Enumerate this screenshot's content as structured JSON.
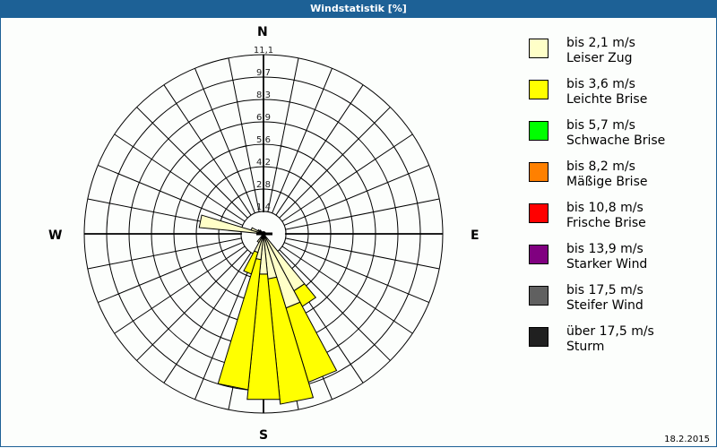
{
  "title": "Windstatistik [%]",
  "footer_date": "18.2.2015",
  "compass": {
    "n": "N",
    "e": "E",
    "s": "S",
    "w": "W"
  },
  "legend": [
    {
      "speed": "bis 2,1 m/s",
      "name": "Leiser Zug",
      "color": "#ffffc8"
    },
    {
      "speed": "bis 3,6 m/s",
      "name": "Leichte Brise",
      "color": "#ffff00"
    },
    {
      "speed": "bis 5,7 m/s",
      "name": "Schwache Brise",
      "color": "#00ff00"
    },
    {
      "speed": "bis 8,2 m/s",
      "name": "Mäßige Brise",
      "color": "#ff8000"
    },
    {
      "speed": "bis 10,8 m/s",
      "name": "Frische Brise",
      "color": "#ff0000"
    },
    {
      "speed": "bis 13,9 m/s",
      "name": "Starker Wind",
      "color": "#800080"
    },
    {
      "speed": "bis 17,5 m/s",
      "name": "Steifer Wind",
      "color": "#606060"
    },
    {
      "speed": "über 17,5 m/s",
      "name": "Sturm",
      "color": "#202020"
    }
  ],
  "chart_data": {
    "type": "wind-rose",
    "title": "Windstatistik [%]",
    "ring_labels": [
      "1,4",
      "2,8",
      "4,2",
      "5,6",
      "6,9",
      "8,3",
      "9,7",
      "11,1"
    ],
    "rmax": 11.1,
    "sectors": 32,
    "series_names": [
      "Leiser Zug",
      "Leichte Brise"
    ],
    "petals": [
      {
        "dir_deg": 146.25,
        "leiser_zug": 4.0,
        "leichte_brise": 1.1
      },
      {
        "dir_deg": 157.5,
        "leiser_zug": 4.8,
        "leichte_brise": 4.8
      },
      {
        "dir_deg": 168.75,
        "leiser_zug": 2.8,
        "leichte_brise": 7.8
      },
      {
        "dir_deg": 180.0,
        "leiser_zug": 2.5,
        "leichte_brise": 7.8
      },
      {
        "dir_deg": 191.25,
        "leiser_zug": 1.6,
        "leichte_brise": 8.1
      },
      {
        "dir_deg": 202.5,
        "leiser_zug": 1.2,
        "leichte_brise": 1.4
      },
      {
        "dir_deg": 213.75,
        "leiser_zug": 0.6,
        "leichte_brise": 0.0
      },
      {
        "dir_deg": 281.25,
        "leiser_zug": 4.0,
        "leichte_brise": 0.0
      },
      {
        "dir_deg": 292.5,
        "leiser_zug": 0.8,
        "leichte_brise": 0.0
      },
      {
        "dir_deg": 303.75,
        "leiser_zug": 0.4,
        "leichte_brise": 0.0
      },
      {
        "dir_deg": 315.0,
        "leiser_zug": 0.3,
        "leichte_brise": 0.0
      }
    ],
    "legend": [
      "bis 2,1 m/s Leiser Zug",
      "bis 3,6 m/s Leichte Brise",
      "bis 5,7 m/s Schwache Brise",
      "bis 8,2 m/s Mäßige Brise",
      "bis 10,8 m/s Frische Brise",
      "bis 13,9 m/s Starker Wind",
      "bis 17,5 m/s Steifer Wind",
      "über 17,5 m/s Sturm"
    ]
  }
}
